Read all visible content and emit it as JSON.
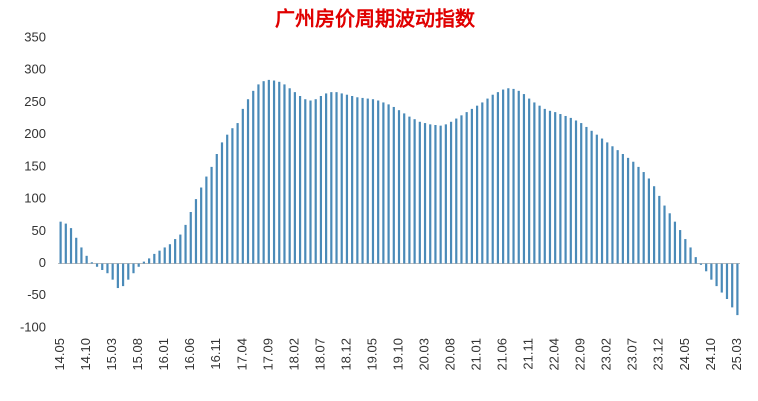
{
  "chart_data": {
    "type": "bar",
    "title": "广州房价周期波动指数",
    "categories": [
      "14.05",
      null,
      null,
      null,
      null,
      "14.10",
      null,
      null,
      null,
      null,
      "15.03",
      null,
      null,
      null,
      null,
      "15.08",
      null,
      null,
      null,
      null,
      "16.01",
      null,
      null,
      null,
      null,
      "16.06",
      null,
      null,
      null,
      null,
      "16.11",
      null,
      null,
      null,
      null,
      "17.04",
      null,
      null,
      null,
      null,
      "17.09",
      null,
      null,
      null,
      null,
      "18.02",
      null,
      null,
      null,
      null,
      "18.07",
      null,
      null,
      null,
      null,
      "18.12",
      null,
      null,
      null,
      null,
      "19.05",
      null,
      null,
      null,
      null,
      "19.10",
      null,
      null,
      null,
      null,
      "20.03",
      null,
      null,
      null,
      null,
      "20.08",
      null,
      null,
      null,
      null,
      "21.01",
      null,
      null,
      null,
      null,
      "21.06",
      null,
      null,
      null,
      null,
      "21.11",
      null,
      null,
      null,
      null,
      "22.04",
      null,
      null,
      null,
      null,
      "22.09",
      null,
      null,
      null,
      null,
      "23.02",
      null,
      null,
      null,
      null,
      "23.07",
      null,
      null,
      null,
      null,
      "23.12",
      null,
      null,
      null,
      null,
      "24.05",
      null,
      null,
      null,
      null,
      "24.10",
      null,
      null,
      null,
      null,
      "25.03"
    ],
    "values": [
      65,
      62,
      55,
      40,
      25,
      12,
      2,
      -5,
      -10,
      -15,
      -25,
      -38,
      -35,
      -25,
      -15,
      -5,
      3,
      8,
      15,
      20,
      25,
      30,
      38,
      45,
      60,
      80,
      100,
      118,
      135,
      150,
      170,
      188,
      200,
      210,
      218,
      240,
      255,
      268,
      278,
      283,
      285,
      284,
      282,
      278,
      272,
      266,
      260,
      255,
      253,
      255,
      260,
      264,
      266,
      266,
      264,
      262,
      260,
      258,
      257,
      256,
      255,
      253,
      250,
      247,
      243,
      238,
      233,
      228,
      224,
      220,
      218,
      216,
      215,
      214,
      216,
      220,
      225,
      230,
      235,
      240,
      245,
      250,
      256,
      262,
      266,
      270,
      272,
      271,
      268,
      263,
      256,
      250,
      245,
      240,
      237,
      235,
      232,
      229,
      226,
      222,
      218,
      212,
      206,
      200,
      194,
      188,
      182,
      176,
      170,
      164,
      158,
      150,
      142,
      132,
      120,
      105,
      90,
      78,
      65,
      52,
      38,
      25,
      10,
      -2,
      -12,
      -25,
      -35,
      -45,
      -55,
      -68,
      -80
    ],
    "color": "#4a8ab8",
    "ylim": [
      -100,
      350
    ],
    "yticks": [
      -100,
      -50,
      0,
      50,
      100,
      150,
      200,
      250,
      300,
      350
    ],
    "grid": false
  }
}
